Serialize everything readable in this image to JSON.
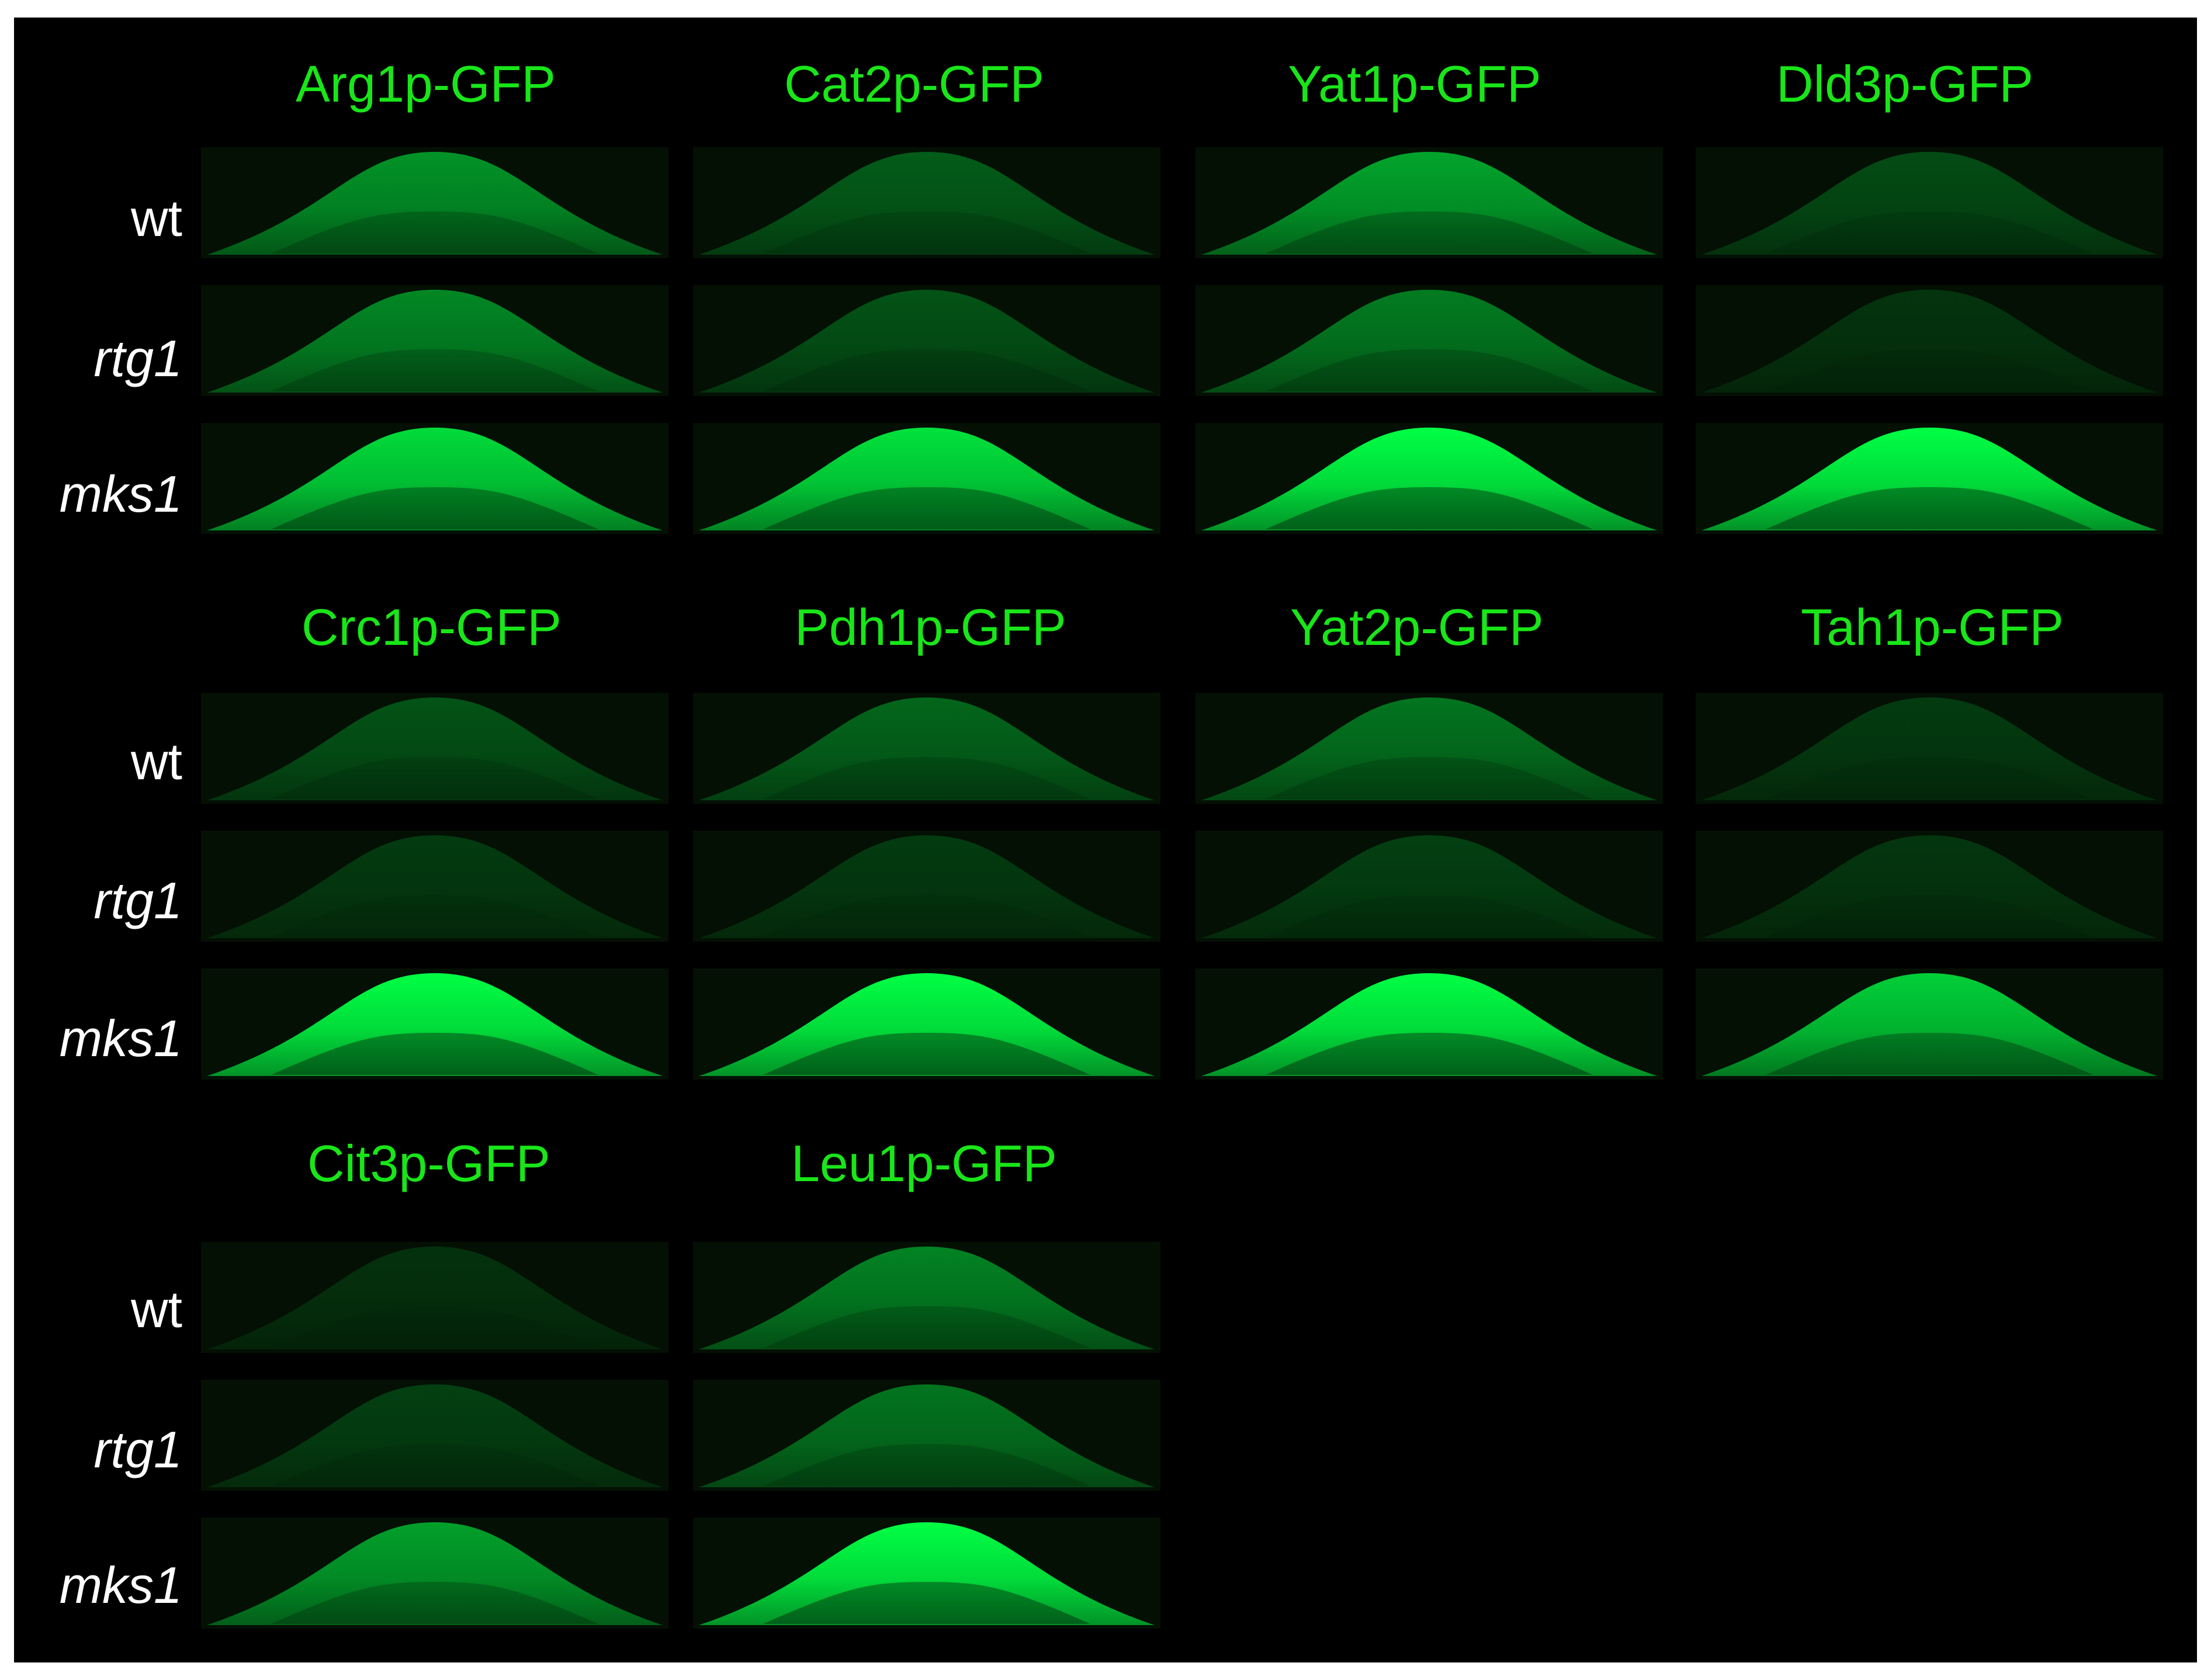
{
  "figure": {
    "groups": [
      {
        "constructs": [
          "Arg1p-GFP",
          "Cat2p-GFP",
          "Yat1p-GFP",
          "Dld3p-GFP"
        ],
        "rows": [
          "wt",
          "rtg1",
          "mks1"
        ]
      },
      {
        "constructs": [
          "Crc1p-GFP",
          "Pdh1p-GFP",
          "Yat2p-GFP",
          "Tah1p-GFP"
        ],
        "rows": [
          "wt",
          "rtg1",
          "mks1"
        ]
      },
      {
        "constructs": [
          "Cit3p-GFP",
          "Leu1p-GFP"
        ],
        "rows": [
          "wt",
          "rtg1",
          "mks1"
        ]
      }
    ],
    "colors": {
      "background": "#000000",
      "title_text": "#19e619",
      "row_label_text": "#ffffff",
      "fluorescence": "#00ff44"
    },
    "intensity": [
      [
        [
          0.55,
          0.32,
          0.62,
          0.25
        ],
        [
          0.5,
          0.28,
          0.45,
          0.15
        ],
        [
          0.85,
          0.88,
          1.0,
          1.0
        ]
      ],
      [
        [
          0.28,
          0.36,
          0.42,
          0.18
        ],
        [
          0.18,
          0.18,
          0.2,
          0.16
        ],
        [
          1.0,
          1.0,
          1.0,
          0.8
        ]
      ],
      [
        [
          0.14,
          0.48
        ],
        [
          0.2,
          0.42
        ],
        [
          0.6,
          1.0
        ]
      ]
    ]
  }
}
